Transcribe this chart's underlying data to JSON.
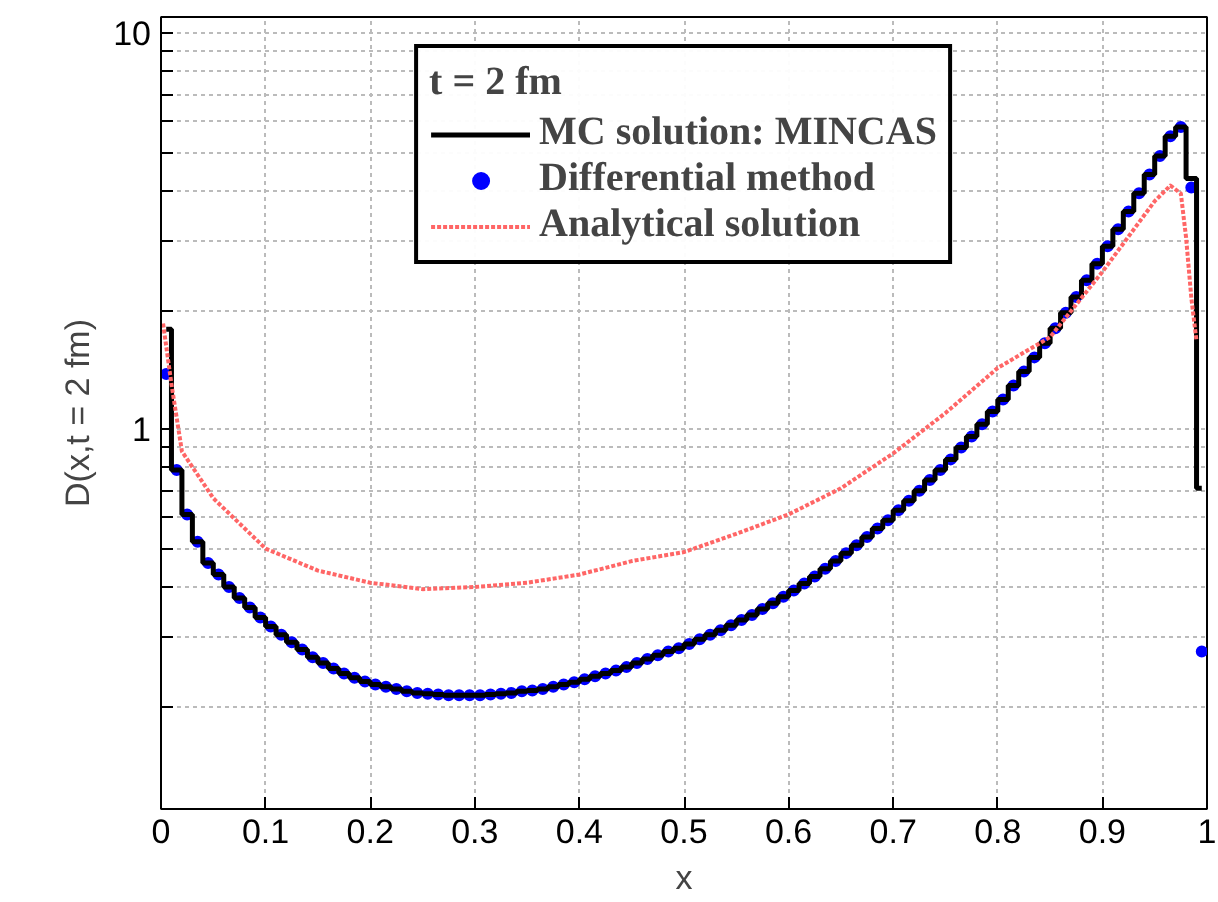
{
  "chart_data": {
    "type": "line",
    "xlabel": "x",
    "ylabel": "D(x,t = 2 fm)",
    "legend_title": "t = 2 fm",
    "log": "y",
    "grid": true,
    "legend": "top",
    "xlim": [
      0,
      1
    ],
    "ylim": [
      0.11,
      11
    ],
    "xticks": [
      0,
      0.1,
      0.2,
      0.3,
      0.4,
      0.5,
      0.6,
      0.7,
      0.8,
      0.9,
      1
    ],
    "yticks": [
      {
        "value": 0.2,
        "label": null
      },
      {
        "value": 0.3,
        "label": null
      },
      {
        "value": 0.4,
        "label": null
      },
      {
        "value": 0.5,
        "label": null
      },
      {
        "value": 0.6,
        "label": null
      },
      {
        "value": 0.7,
        "label": null
      },
      {
        "value": 0.8,
        "label": null
      },
      {
        "value": 0.9,
        "label": null
      },
      1,
      {
        "value": 2,
        "label": null
      },
      {
        "value": 3,
        "label": null
      },
      {
        "value": 4,
        "label": null
      },
      {
        "value": 5,
        "label": null
      },
      {
        "value": 6,
        "label": null
      },
      {
        "value": 7,
        "label": null
      },
      {
        "value": 8,
        "label": null
      },
      {
        "value": 9,
        "label": null
      },
      10
    ],
    "series": [
      {
        "name": "MC solution: MINCAS",
        "type": "step",
        "color": "#000000",
        "marker": "none",
        "line_style": "solid",
        "x": [
          0.005,
          0.015,
          0.025,
          0.035,
          0.045,
          0.055,
          0.065,
          0.075,
          0.085,
          0.095,
          0.105,
          0.115,
          0.125,
          0.135,
          0.145,
          0.155,
          0.165,
          0.175,
          0.185,
          0.195,
          0.205,
          0.215,
          0.225,
          0.235,
          0.245,
          0.255,
          0.265,
          0.275,
          0.285,
          0.295,
          0.305,
          0.315,
          0.325,
          0.335,
          0.345,
          0.355,
          0.365,
          0.375,
          0.385,
          0.395,
          0.405,
          0.415,
          0.425,
          0.435,
          0.445,
          0.455,
          0.465,
          0.475,
          0.485,
          0.495,
          0.505,
          0.515,
          0.525,
          0.535,
          0.545,
          0.555,
          0.565,
          0.575,
          0.585,
          0.595,
          0.605,
          0.615,
          0.625,
          0.635,
          0.645,
          0.655,
          0.665,
          0.675,
          0.685,
          0.695,
          0.705,
          0.715,
          0.725,
          0.735,
          0.745,
          0.755,
          0.765,
          0.775,
          0.785,
          0.795,
          0.805,
          0.815,
          0.825,
          0.835,
          0.845,
          0.855,
          0.865,
          0.875,
          0.885,
          0.895,
          0.905,
          0.915,
          0.925,
          0.935,
          0.945,
          0.955,
          0.965,
          0.975,
          0.985,
          0.995
        ],
        "values": [
          1.79,
          0.79,
          0.61,
          0.52,
          0.46,
          0.43,
          0.4,
          0.375,
          0.355,
          0.335,
          0.318,
          0.303,
          0.29,
          0.278,
          0.266,
          0.257,
          0.249,
          0.242,
          0.236,
          0.231,
          0.227,
          0.224,
          0.221,
          0.218,
          0.216,
          0.215,
          0.214,
          0.213,
          0.213,
          0.213,
          0.213,
          0.214,
          0.215,
          0.216,
          0.218,
          0.219,
          0.221,
          0.224,
          0.227,
          0.23,
          0.234,
          0.238,
          0.242,
          0.246,
          0.251,
          0.257,
          0.263,
          0.269,
          0.275,
          0.28,
          0.287,
          0.295,
          0.303,
          0.311,
          0.32,
          0.33,
          0.34,
          0.352,
          0.364,
          0.378,
          0.392,
          0.408,
          0.425,
          0.445,
          0.465,
          0.487,
          0.51,
          0.535,
          0.562,
          0.59,
          0.625,
          0.66,
          0.7,
          0.745,
          0.79,
          0.84,
          0.9,
          0.96,
          1.03,
          1.11,
          1.19,
          1.29,
          1.4,
          1.52,
          1.65,
          1.8,
          1.97,
          2.16,
          2.38,
          2.62,
          2.9,
          3.2,
          3.55,
          3.95,
          4.4,
          4.9,
          5.5,
          5.8,
          4.3,
          0.71
        ]
      },
      {
        "name": "Differential method",
        "type": "scatter",
        "color": "#0000ff",
        "marker": "circle",
        "x": [
          0.005,
          0.015,
          0.025,
          0.035,
          0.045,
          0.055,
          0.065,
          0.075,
          0.085,
          0.095,
          0.105,
          0.115,
          0.125,
          0.135,
          0.145,
          0.155,
          0.165,
          0.175,
          0.185,
          0.195,
          0.205,
          0.215,
          0.225,
          0.235,
          0.245,
          0.255,
          0.265,
          0.275,
          0.285,
          0.295,
          0.305,
          0.315,
          0.325,
          0.335,
          0.345,
          0.355,
          0.365,
          0.375,
          0.385,
          0.395,
          0.405,
          0.415,
          0.425,
          0.435,
          0.445,
          0.455,
          0.465,
          0.475,
          0.485,
          0.495,
          0.505,
          0.515,
          0.525,
          0.535,
          0.545,
          0.555,
          0.565,
          0.575,
          0.585,
          0.595,
          0.605,
          0.615,
          0.625,
          0.635,
          0.645,
          0.655,
          0.665,
          0.675,
          0.685,
          0.695,
          0.705,
          0.715,
          0.725,
          0.735,
          0.745,
          0.755,
          0.765,
          0.775,
          0.785,
          0.795,
          0.805,
          0.815,
          0.825,
          0.835,
          0.845,
          0.855,
          0.865,
          0.875,
          0.885,
          0.895,
          0.905,
          0.915,
          0.925,
          0.935,
          0.945,
          0.955,
          0.965,
          0.975,
          0.985,
          0.995
        ],
        "values": [
          1.38,
          0.79,
          0.61,
          0.52,
          0.46,
          0.43,
          0.4,
          0.375,
          0.355,
          0.335,
          0.318,
          0.303,
          0.29,
          0.278,
          0.266,
          0.257,
          0.249,
          0.242,
          0.236,
          0.231,
          0.227,
          0.224,
          0.221,
          0.218,
          0.216,
          0.215,
          0.214,
          0.213,
          0.213,
          0.213,
          0.213,
          0.214,
          0.215,
          0.216,
          0.218,
          0.219,
          0.221,
          0.224,
          0.227,
          0.23,
          0.234,
          0.238,
          0.242,
          0.246,
          0.251,
          0.257,
          0.263,
          0.269,
          0.275,
          0.28,
          0.287,
          0.295,
          0.303,
          0.311,
          0.32,
          0.33,
          0.34,
          0.352,
          0.364,
          0.378,
          0.392,
          0.408,
          0.425,
          0.445,
          0.465,
          0.487,
          0.51,
          0.535,
          0.562,
          0.59,
          0.625,
          0.66,
          0.7,
          0.745,
          0.79,
          0.84,
          0.9,
          0.96,
          1.03,
          1.11,
          1.19,
          1.29,
          1.4,
          1.52,
          1.65,
          1.8,
          1.97,
          2.16,
          2.38,
          2.62,
          2.9,
          3.2,
          3.55,
          3.95,
          4.4,
          4.9,
          5.5,
          5.8,
          4.08,
          0.275
        ]
      },
      {
        "name": "Analytical solution",
        "color": "#ff6666",
        "marker": "none",
        "line_style": "dotted",
        "x": [
          0.002,
          0.01,
          0.02,
          0.05,
          0.1,
          0.15,
          0.2,
          0.25,
          0.3,
          0.35,
          0.4,
          0.45,
          0.5,
          0.55,
          0.6,
          0.65,
          0.7,
          0.75,
          0.8,
          0.85,
          0.9,
          0.95,
          0.965,
          0.975,
          0.98,
          0.985,
          0.99
        ],
        "values": [
          1.85,
          1.3,
          0.88,
          0.67,
          0.5,
          0.44,
          0.41,
          0.395,
          0.4,
          0.41,
          0.43,
          0.465,
          0.49,
          0.545,
          0.61,
          0.71,
          0.87,
          1.1,
          1.43,
          1.71,
          2.5,
          3.77,
          4.13,
          3.94,
          3.05,
          2.15,
          1.67
        ]
      }
    ]
  }
}
